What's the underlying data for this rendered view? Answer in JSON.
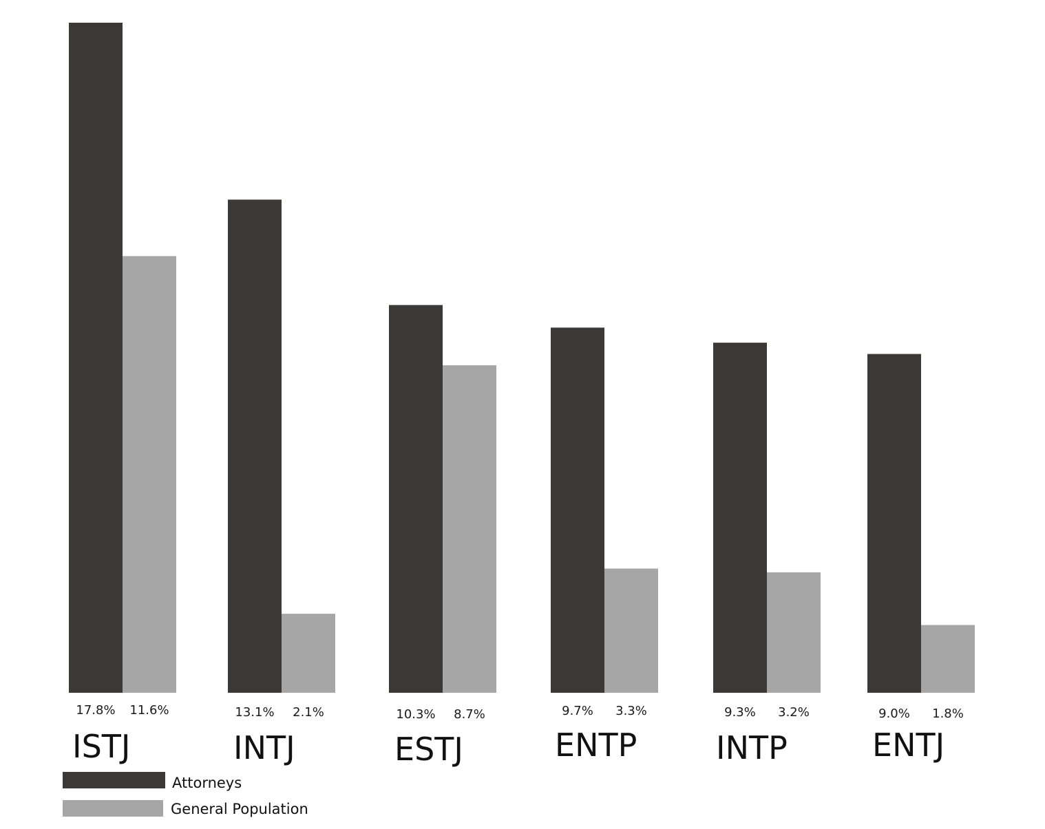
{
  "chart_data": {
    "type": "bar",
    "title": "",
    "xlabel": "",
    "ylabel": "",
    "ylim": [
      0,
      17.8
    ],
    "grid": false,
    "legend_position": "bottom-left",
    "categories": [
      "ISTJ",
      "INTJ",
      "ESTJ",
      "ENTP",
      "INTP",
      "ENTJ"
    ],
    "series": [
      {
        "name": "Attorneys",
        "color": "#3a3937",
        "values": [
          17.8,
          13.1,
          10.3,
          9.7,
          9.3,
          9.0
        ],
        "labels": [
          "17.8%",
          "13.1%",
          "10.3%",
          "9.7%",
          "9.3%",
          "9.0%"
        ]
      },
      {
        "name": "General Population",
        "color": "#a6a6a6",
        "values": [
          11.6,
          2.1,
          8.7,
          3.3,
          3.2,
          1.8
        ],
        "labels": [
          "11.6%",
          "2.1%",
          "8.7%",
          "3.3%",
          "3.2%",
          "1.8%"
        ]
      }
    ]
  }
}
